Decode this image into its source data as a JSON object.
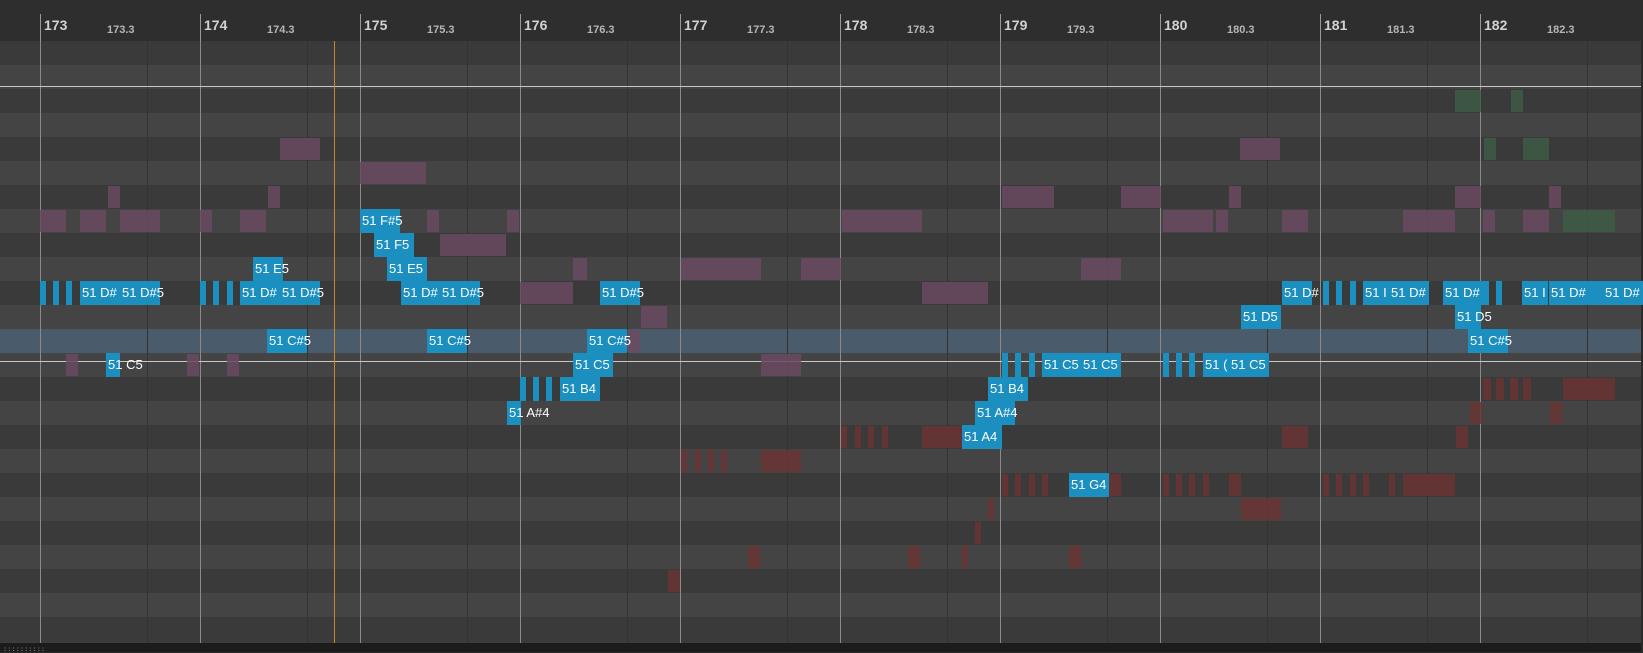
{
  "ruler": {
    "bars": [
      "173",
      "174",
      "175",
      "176",
      "177",
      "178",
      "179",
      "180",
      "181",
      "182"
    ],
    "beats": [
      "173.3",
      "174.3",
      "175.3",
      "176.3",
      "177.3",
      "178.3",
      "179.3",
      "180.3",
      "181.3",
      "182.3"
    ]
  },
  "colors": {
    "note": "#1a8fc0",
    "selected_row": "#4a5c6b",
    "ghost_purple": "#6a4a62",
    "ghost_red": "#6b3434",
    "ghost_green": "#3e5c46",
    "playhead": "#c58a2a"
  },
  "notes": [
    {
      "label": "",
      "row": 10
    },
    {
      "label": "",
      "row": 10
    },
    {
      "label": "",
      "row": 10
    },
    {
      "label": "51 D#",
      "row": 10
    },
    {
      "label": "51 D#5",
      "row": 10
    },
    {
      "label": "",
      "row": 10
    },
    {
      "label": "",
      "row": 10
    },
    {
      "label": "",
      "row": 10
    },
    {
      "label": "51 D#",
      "row": 10
    },
    {
      "label": "51 D#5",
      "row": 10
    },
    {
      "label": "51 C5",
      "row": 13
    },
    {
      "label": "51 E5",
      "row": 9
    },
    {
      "label": "51 C#5",
      "row": 12
    },
    {
      "label": "51 F#5",
      "row": 7
    },
    {
      "label": "51 F5",
      "row": 8
    },
    {
      "label": "51 E5",
      "row": 9
    },
    {
      "label": "51 D#",
      "row": 10
    },
    {
      "label": "51 D#5",
      "row": 10
    },
    {
      "label": "51 C#5",
      "row": 12
    },
    {
      "label": "",
      "row": 14
    },
    {
      "label": "",
      "row": 14
    },
    {
      "label": "",
      "row": 14
    },
    {
      "label": "51 B4",
      "row": 14
    },
    {
      "label": "51 A#4",
      "row": 15
    },
    {
      "label": "51 C5",
      "row": 13
    },
    {
      "label": "51 C#5",
      "row": 12
    },
    {
      "label": "51 D#5",
      "row": 10
    },
    {
      "label": "51 A4",
      "row": 16
    },
    {
      "label": "51 A#4",
      "row": 15
    },
    {
      "label": "51 B4",
      "row": 14
    },
    {
      "label": "",
      "row": 13
    },
    {
      "label": "",
      "row": 13
    },
    {
      "label": "",
      "row": 13
    },
    {
      "label": "51 C5",
      "row": 13
    },
    {
      "label": "51 C5",
      "row": 13
    },
    {
      "label": "51 G4",
      "row": 18
    },
    {
      "label": "",
      "row": 13
    },
    {
      "label": "",
      "row": 13
    },
    {
      "label": "",
      "row": 13
    },
    {
      "label": "51 (",
      "row": 13
    },
    {
      "label": "51 C5",
      "row": 13
    },
    {
      "label": "51 D5",
      "row": 11
    },
    {
      "label": "51 D#",
      "row": 10
    },
    {
      "label": "",
      "row": 10
    },
    {
      "label": "",
      "row": 10
    },
    {
      "label": "",
      "row": 10
    },
    {
      "label": "51 I",
      "row": 10
    },
    {
      "label": "51 D#",
      "row": 10
    },
    {
      "label": "51 D#",
      "row": 10
    },
    {
      "label": "51 D5",
      "row": 11
    },
    {
      "label": "51 C#5",
      "row": 12
    },
    {
      "label": "",
      "row": 10
    },
    {
      "label": "",
      "row": 10
    },
    {
      "label": "51 I",
      "row": 10
    },
    {
      "label": "51 D#",
      "row": 10
    },
    {
      "label": "51 D#",
      "row": 10
    }
  ],
  "status": {
    "grip": "::::::::::"
  }
}
